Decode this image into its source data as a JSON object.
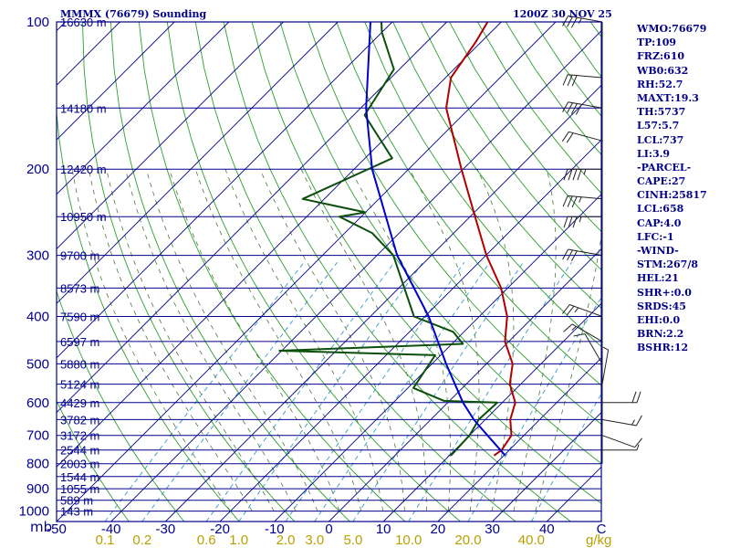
{
  "header": {
    "left": "MMMX (76679) Sounding",
    "right": "1200Z 30 NOV 25"
  },
  "sidebar": {
    "items": [
      "WMO:76679",
      "TP:109",
      "FRZ:610",
      "WB0:632",
      "RH:52.7",
      "MAXT:19.3",
      "TH:5737",
      "L57:5.7",
      "LCL:737",
      "LI:3.9",
      "-PARCEL-",
      "CAPE:27",
      "CINH:25817",
      "LCL:658",
      "CAP:4.0",
      "LFC:-1",
      "-WIND-",
      "STM:267/8",
      "HEL:21",
      "SHR+:0.0",
      "SRDS:45",
      "EHI:0.0",
      "BRN:2.2",
      "BSHR:12"
    ]
  },
  "colors": {
    "frame": "#00008b",
    "isobar": "#00008b",
    "isotherm": "#00008b",
    "dry_adiabat": "#2e9e2e",
    "moist_adiabat": "#4a7a3a",
    "mixing_ratio": "#3399cc",
    "temperature": "#b00000",
    "dewpoint": "#0b4f0b",
    "parcel": "#0000cc",
    "wind_barb": "#222222",
    "mixing_label": "#b8a000"
  },
  "chart_data": {
    "type": "line",
    "title": "MMMX (76679) Sounding",
    "subtitle": "1200Z 30 NOV 25",
    "xlabel": "",
    "ylabel": "mb",
    "xlim": [
      -50,
      50
    ],
    "ylim": [
      1050,
      100
    ],
    "y_scale": "log",
    "pressure_levels": [
      100,
      200,
      300,
      400,
      500,
      600,
      700,
      800,
      900,
      1000
    ],
    "pressure_tick_labels": [
      "100",
      "200",
      "300",
      "400",
      "500",
      "600",
      "700",
      "800",
      "900",
      "1000"
    ],
    "temp_ticks": [
      -50,
      -40,
      -30,
      -20,
      -10,
      0,
      10,
      20,
      30,
      40,
      50
    ],
    "temp_tick_labels": [
      "-50",
      "-40",
      "-30",
      "-20",
      "-10",
      "0",
      "10",
      "20",
      "30",
      "40",
      "C"
    ],
    "height_labels": [
      {
        "p": 100,
        "label": "16630 m"
      },
      {
        "p": 150,
        "label": "14180 m"
      },
      {
        "p": 200,
        "label": "12420 m"
      },
      {
        "p": 250,
        "label": "10950 m"
      },
      {
        "p": 300,
        "label": "9700 m"
      },
      {
        "p": 350,
        "label": "8573 m"
      },
      {
        "p": 400,
        "label": "7590 m"
      },
      {
        "p": 450,
        "label": "6597 m"
      },
      {
        "p": 500,
        "label": "5880 m"
      },
      {
        "p": 550,
        "label": "5124 m"
      },
      {
        "p": 600,
        "label": "4429 m"
      },
      {
        "p": 650,
        "label": "3782 m"
      },
      {
        "p": 700,
        "label": "3172 m"
      },
      {
        "p": 750,
        "label": "2544 m"
      },
      {
        "p": 800,
        "label": "2003 m"
      },
      {
        "p": 850,
        "label": "1544 m"
      },
      {
        "p": 900,
        "label": "1055 m"
      },
      {
        "p": 950,
        "label": "589 m"
      },
      {
        "p": 1000,
        "label": "143 m"
      }
    ],
    "mixing_ratio_labels": [
      {
        "w": 0.1,
        "label": "0.1"
      },
      {
        "w": 0.2,
        "label": "0.2"
      },
      {
        "w": 0.6,
        "label": "0.6"
      },
      {
        "w": 1.0,
        "label": "1.0"
      },
      {
        "w": 2.0,
        "label": "2.0"
      },
      {
        "w": 3.0,
        "label": "3.0"
      },
      {
        "w": 5.0,
        "label": "5.0"
      },
      {
        "w": 10.0,
        "label": "10.0"
      },
      {
        "w": 20.0,
        "label": "20.0"
      },
      {
        "w": 40.0,
        "label": "40.0"
      }
    ],
    "mixing_ratio_unit": "g/kg",
    "series": [
      {
        "points": [
          [
            770,
            18.2
          ],
          [
            750,
            18.6
          ],
          [
            700,
            17.7
          ],
          [
            650,
            14.6
          ],
          [
            600,
            12.4
          ],
          [
            550,
            8.0
          ],
          [
            500,
            4.8
          ],
          [
            450,
            -0.7
          ],
          [
            400,
            -4.9
          ],
          [
            350,
            -11.2
          ],
          [
            300,
            -19.9
          ],
          [
            250,
            -29.1
          ],
          [
            200,
            -40.3
          ],
          [
            150,
            -54.3
          ],
          [
            130,
            -59.0
          ],
          [
            110,
            -61.0
          ],
          [
            100,
            -62.5
          ]
        ]
      },
      {
        "points": [
          [
            770,
            10.3
          ],
          [
            700,
            10.0
          ],
          [
            650,
            8.8
          ],
          [
            600,
            9.1
          ],
          [
            595,
            -1.0
          ],
          [
            560,
            -9.0
          ],
          [
            480,
            -11.0
          ],
          [
            470,
            -40.4
          ],
          [
            455,
            -8.0
          ],
          [
            430,
            -12.0
          ],
          [
            400,
            -22.0
          ],
          [
            300,
            -37.0
          ],
          [
            270,
            -45.0
          ],
          [
            250,
            -54.0
          ],
          [
            245,
            -50.0
          ],
          [
            230,
            -64.0
          ],
          [
            190,
            -55.0
          ],
          [
            155,
            -68.0
          ],
          [
            125,
            -71.0
          ],
          [
            105,
            -80.0
          ],
          [
            100,
            -82.0
          ]
        ]
      },
      {
        "points": [
          [
            770,
            20.3
          ],
          [
            700,
            13.3
          ],
          [
            650,
            7.9
          ],
          [
            600,
            2.8
          ],
          [
            500,
            -7.4
          ],
          [
            400,
            -19.3
          ],
          [
            300,
            -36.3
          ],
          [
            200,
            -56.7
          ],
          [
            150,
            -69.0
          ],
          [
            100,
            -84.0
          ]
        ]
      }
    ],
    "wind_barbs": [
      {
        "p": 100,
        "dir": 280,
        "spd": 35
      },
      {
        "p": 130,
        "dir": 275,
        "spd": 30
      },
      {
        "p": 150,
        "dir": 280,
        "spd": 40
      },
      {
        "p": 175,
        "dir": 285,
        "spd": 20
      },
      {
        "p": 200,
        "dir": 270,
        "spd": 45
      },
      {
        "p": 230,
        "dir": 275,
        "spd": 35
      },
      {
        "p": 250,
        "dir": 270,
        "spd": 35
      },
      {
        "p": 300,
        "dir": 280,
        "spd": 30
      },
      {
        "p": 400,
        "dir": 290,
        "spd": 25
      },
      {
        "p": 450,
        "dir": 300,
        "spd": 15
      },
      {
        "p": 500,
        "dir": 330,
        "spd": 10
      },
      {
        "p": 550,
        "dir": 10,
        "spd": 5
      },
      {
        "p": 600,
        "dir": 90,
        "spd": 20
      },
      {
        "p": 650,
        "dir": 100,
        "spd": 15
      },
      {
        "p": 700,
        "dir": 110,
        "spd": 10
      },
      {
        "p": 750,
        "dir": 90,
        "spd": 5
      }
    ]
  }
}
